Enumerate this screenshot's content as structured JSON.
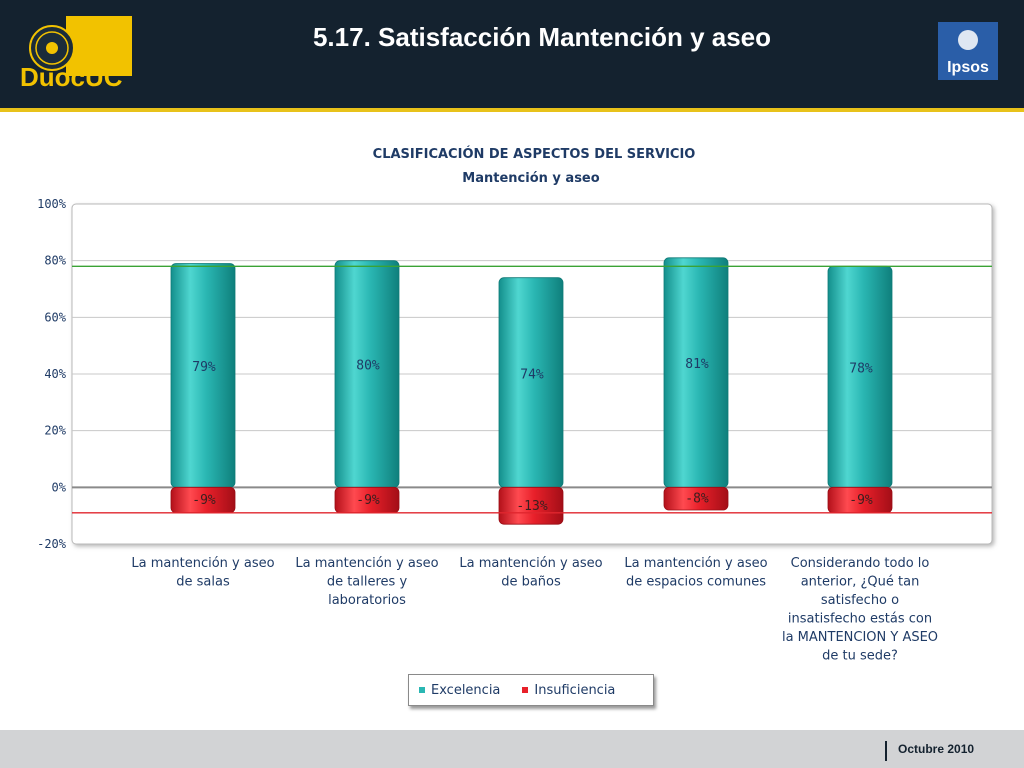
{
  "header": {
    "slide_title": "5.17. Satisfacción Mantención y aseo",
    "left_logo_text": "DuocUC",
    "right_logo_text": "Ipsos"
  },
  "footer": {
    "date": "Octubre 2010"
  },
  "chart_data": {
    "type": "bar",
    "title": "CLASIFICACIÓN DE ASPECTOS DEL SERVICIO",
    "subtitle": "Mantención y aseo",
    "categories": [
      [
        "La mantención y aseo",
        "de salas"
      ],
      [
        "La mantención y aseo",
        "de talleres y",
        "laboratorios"
      ],
      [
        "La mantención y aseo",
        "de baños"
      ],
      [
        "La mantención y aseo",
        "de espacios comunes"
      ],
      [
        "Considerando todo lo",
        "anterior, ¿Qué tan",
        "satisfecho o",
        "insatisfecho estás con",
        "la MANTENCION Y ASEO",
        "de tu sede?"
      ]
    ],
    "series": [
      {
        "name": "Excelencia",
        "values": [
          79,
          80,
          74,
          81,
          78
        ],
        "labels": [
          "79%",
          "80%",
          "74%",
          "81%",
          "78%"
        ],
        "color": "#2ab7b3"
      },
      {
        "name": "Insuficiencia",
        "values": [
          -9,
          -9,
          -13,
          -8,
          -9
        ],
        "labels": [
          "-9%",
          "-9%",
          "-13%",
          "-8%",
          "-9%"
        ],
        "color": "#e8202a"
      }
    ],
    "ylim": [
      -20,
      100
    ],
    "yticks": [
      100,
      80,
      60,
      40,
      20,
      0,
      -20
    ],
    "ytick_labels": [
      "100%",
      "80%",
      "60%",
      "40%",
      "20%",
      "0%",
      "-20%"
    ],
    "reference_lines": [
      {
        "value": 78,
        "color": "#3aa335"
      },
      {
        "value": -9,
        "color": "#e0262e"
      }
    ],
    "grid": true,
    "legend_position": "bottom"
  }
}
